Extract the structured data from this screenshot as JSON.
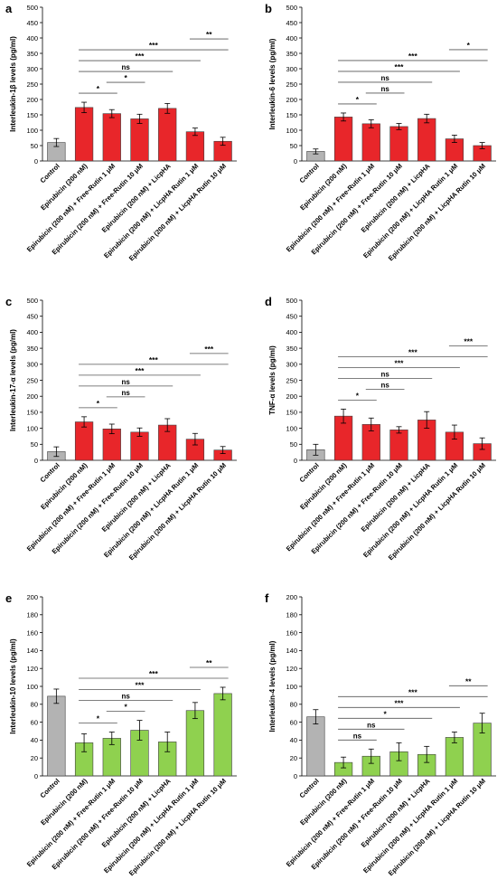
{
  "categories": [
    "Control",
    "Epirubicin (200 nM)",
    "Epirubicin (200 nM) + Free-Rutin 1 μM",
    "Epirubicin (200 nM) + Free-Rutin 10 μM",
    "Epirubicin (200 nM) + LicpHA",
    "Epirubicin (200 nM) + LicpHA Rutin 1 μM",
    "Epirubicin (200 nM) + LicpHA Rutin 10 μM"
  ],
  "colors": {
    "control": "#b3b3b3",
    "red": "#e8262a",
    "green": "#8fd14f",
    "axis": "#000000",
    "grid": "#d9d9d9"
  },
  "chart_data": [
    {
      "panel": "a",
      "type": "bar",
      "ylabel": "Interleukin-1β levels  (pg/ml)",
      "ylim": [
        0,
        500
      ],
      "ytick_step": 50,
      "values": [
        60,
        174,
        154,
        137,
        171,
        95,
        64
      ],
      "errors": [
        13,
        17,
        13,
        15,
        16,
        12,
        13
      ],
      "brackets": [
        {
          "from": 1,
          "to": 2,
          "label": "*"
        },
        {
          "from": 2,
          "to": 3,
          "label": "*"
        },
        {
          "from": 1,
          "to": 4,
          "label": "ns"
        },
        {
          "from": 1,
          "to": 5,
          "label": "***"
        },
        {
          "from": 1,
          "to": 6,
          "label": "***"
        },
        {
          "from": 5,
          "to": 6,
          "label": "**"
        }
      ]
    },
    {
      "panel": "b",
      "type": "bar",
      "ylabel": "Interleukin-6 levels (pg/ml)",
      "ylim": [
        0,
        500
      ],
      "ytick_step": 50,
      "values": [
        31,
        143,
        121,
        112,
        138,
        72,
        50
      ],
      "errors": [
        8,
        13,
        13,
        10,
        14,
        12,
        10
      ],
      "brackets": [
        {
          "from": 1,
          "to": 2,
          "label": "*"
        },
        {
          "from": 2,
          "to": 3,
          "label": "ns"
        },
        {
          "from": 1,
          "to": 4,
          "label": "ns"
        },
        {
          "from": 1,
          "to": 5,
          "label": "***"
        },
        {
          "from": 1,
          "to": 6,
          "label": "***"
        },
        {
          "from": 5,
          "to": 6,
          "label": "*"
        }
      ]
    },
    {
      "panel": "c",
      "type": "bar",
      "ylabel": "Interleukin-17-α levels (pg/ml)",
      "ylim": [
        0,
        500
      ],
      "ytick_step": 50,
      "values": [
        27,
        120,
        98,
        88,
        110,
        66,
        32
      ],
      "errors": [
        15,
        16,
        15,
        13,
        20,
        18,
        11
      ],
      "brackets": [
        {
          "from": 1,
          "to": 2,
          "label": "*"
        },
        {
          "from": 2,
          "to": 3,
          "label": "ns"
        },
        {
          "from": 1,
          "to": 4,
          "label": "ns"
        },
        {
          "from": 1,
          "to": 5,
          "label": "***"
        },
        {
          "from": 1,
          "to": 6,
          "label": "***"
        },
        {
          "from": 5,
          "to": 6,
          "label": "***"
        }
      ]
    },
    {
      "panel": "d",
      "type": "bar",
      "ylabel": "TNF-α levels (pg/ml)",
      "ylim": [
        0,
        500
      ],
      "ytick_step": 50,
      "values": [
        33,
        138,
        112,
        95,
        126,
        88,
        52
      ],
      "errors": [
        17,
        22,
        20,
        10,
        26,
        22,
        18
      ],
      "brackets": [
        {
          "from": 1,
          "to": 2,
          "label": "*"
        },
        {
          "from": 2,
          "to": 3,
          "label": "ns"
        },
        {
          "from": 1,
          "to": 4,
          "label": "ns"
        },
        {
          "from": 1,
          "to": 5,
          "label": "***"
        },
        {
          "from": 1,
          "to": 6,
          "label": "***"
        },
        {
          "from": 5,
          "to": 6,
          "label": "***"
        }
      ]
    },
    {
      "panel": "e",
      "type": "bar",
      "ylabel": "Interleukin-10 levels (pg/ml)",
      "ylim": [
        0,
        200
      ],
      "ytick_step": 20,
      "values": [
        89,
        37,
        42,
        51,
        38,
        73,
        92
      ],
      "errors": [
        8,
        10,
        7,
        11,
        11,
        9,
        7
      ],
      "brackets": [
        {
          "from": 1,
          "to": 2,
          "label": "*"
        },
        {
          "from": 2,
          "to": 3,
          "label": "*"
        },
        {
          "from": 1,
          "to": 4,
          "label": "ns"
        },
        {
          "from": 1,
          "to": 5,
          "label": "***"
        },
        {
          "from": 1,
          "to": 6,
          "label": "***"
        },
        {
          "from": 5,
          "to": 6,
          "label": "**"
        }
      ]
    },
    {
      "panel": "f",
      "type": "bar",
      "ylabel": "Interleukin-4 levels (pg/ml)",
      "ylim": [
        0,
        200
      ],
      "ytick_step": 20,
      "values": [
        66,
        15,
        22,
        27,
        24,
        43,
        59
      ],
      "errors": [
        8,
        6,
        8,
        10,
        9,
        6,
        11
      ],
      "brackets": [
        {
          "from": 1,
          "to": 2,
          "label": "ns"
        },
        {
          "from": 1,
          "to": 3,
          "label": "ns"
        },
        {
          "from": 1,
          "to": 4,
          "label": "*"
        },
        {
          "from": 1,
          "to": 5,
          "label": "***"
        },
        {
          "from": 1,
          "to": 6,
          "label": "***"
        },
        {
          "from": 5,
          "to": 6,
          "label": "**"
        }
      ]
    }
  ]
}
